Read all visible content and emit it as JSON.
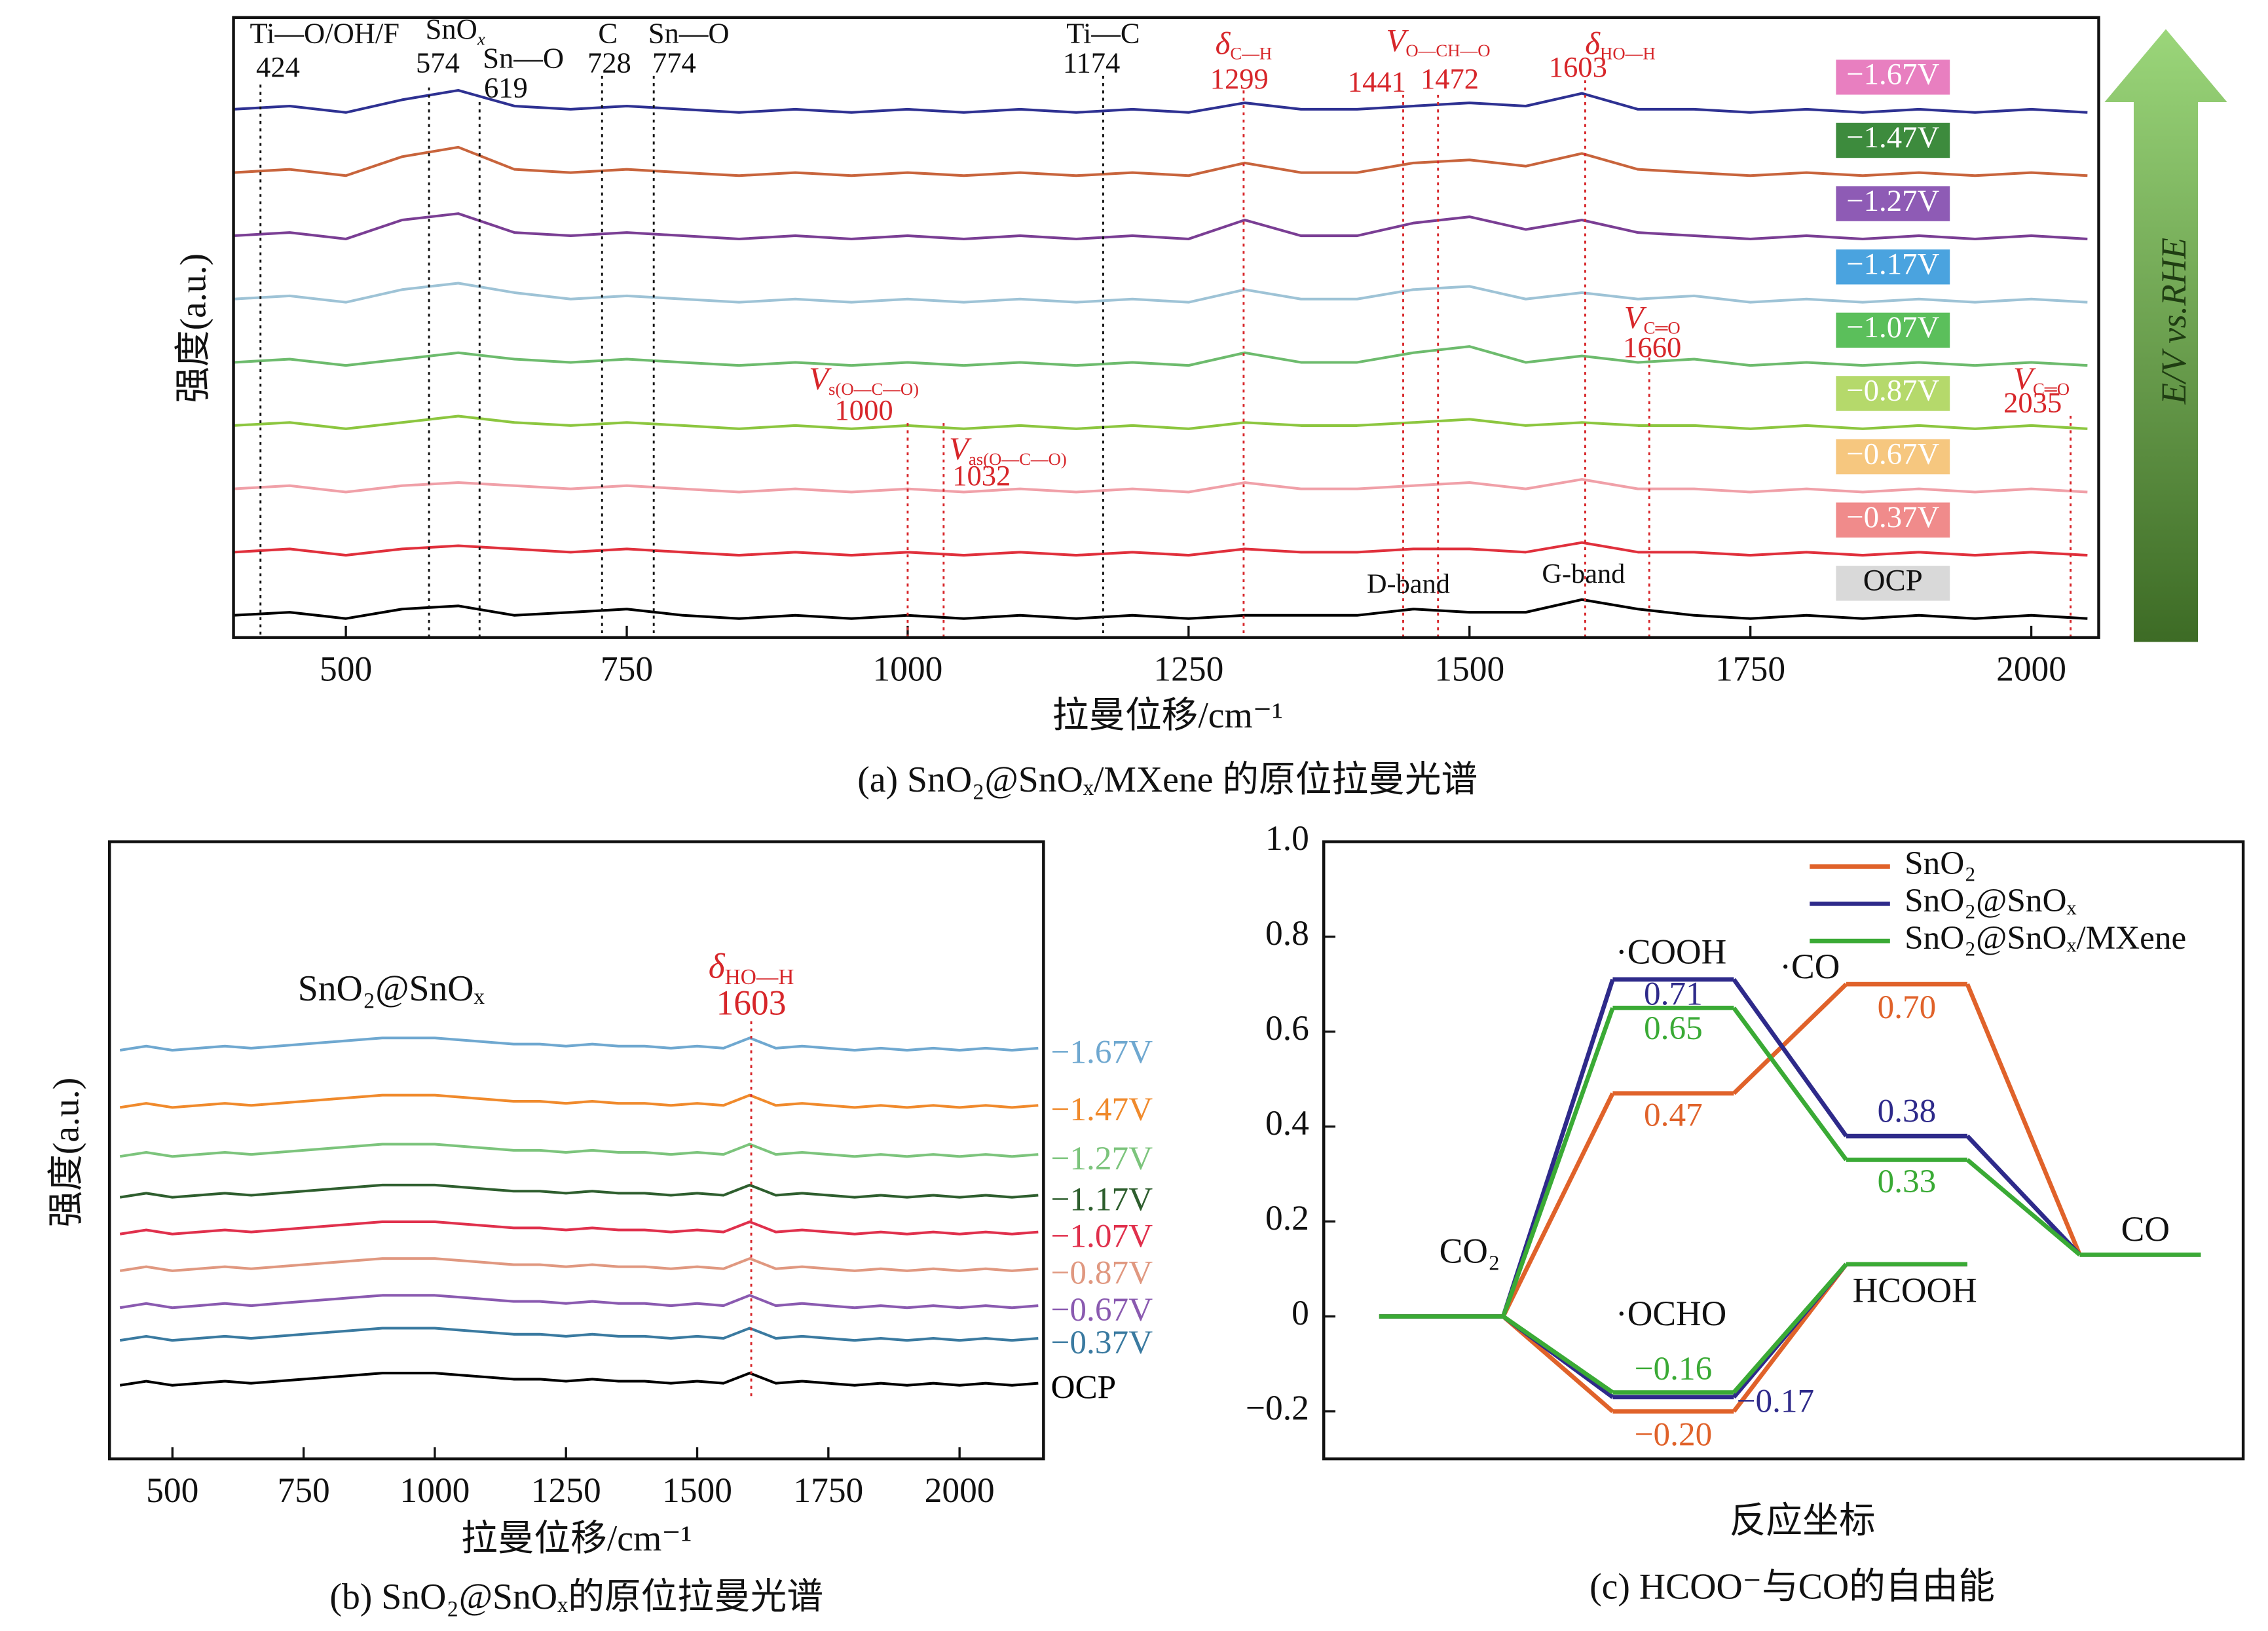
{
  "chart_data": [
    {
      "type": "spectra",
      "title": "(a) SnO₂@SnOₓ/MXene 的原位拉曼光谱",
      "x_label": "拉曼位移/cm⁻¹",
      "y_label": "强度(a.u.)",
      "side_label": "E/V vs.RHE",
      "xlim": [
        400,
        2060
      ],
      "xticks": [
        500,
        750,
        1000,
        1250,
        1500,
        1750,
        2000
      ],
      "ylim": [
        -0.3,
        9.5
      ],
      "x": [
        400,
        450,
        500,
        550,
        600,
        650,
        700,
        750,
        800,
        850,
        900,
        950,
        1000,
        1050,
        1100,
        1150,
        1200,
        1250,
        1300,
        1350,
        1400,
        1450,
        1500,
        1550,
        1600,
        1650,
        1700,
        1750,
        1800,
        1850,
        1900,
        1950,
        2000,
        2050
      ],
      "series": [
        {
          "name": "−1.67V",
          "color": "#2e3192",
          "label_color": "#e87fc0",
          "values": [
            8.05,
            8.1,
            8.0,
            8.2,
            8.35,
            8.1,
            8.05,
            8.1,
            8.05,
            8.0,
            8.05,
            8.0,
            8.05,
            8.0,
            8.05,
            8.0,
            8.05,
            8.0,
            8.15,
            8.05,
            8.05,
            8.1,
            8.15,
            8.1,
            8.3,
            8.05,
            8.05,
            8.0,
            8.05,
            8.0,
            8.05,
            8.0,
            8.05,
            8.0
          ]
        },
        {
          "name": "−1.47V",
          "color": "#c8643c",
          "label_color": "#3d8b3d",
          "values": [
            7.05,
            7.1,
            7.0,
            7.3,
            7.45,
            7.1,
            7.05,
            7.1,
            7.05,
            7.0,
            7.05,
            7.0,
            7.05,
            7.0,
            7.05,
            7.0,
            7.05,
            7.0,
            7.2,
            7.05,
            7.05,
            7.2,
            7.25,
            7.15,
            7.35,
            7.1,
            7.05,
            7.0,
            7.05,
            7.0,
            7.05,
            7.0,
            7.05,
            7.0
          ]
        },
        {
          "name": "−1.27V",
          "color": "#7a3e94",
          "label_color": "#8e5bb5",
          "values": [
            6.05,
            6.1,
            6.0,
            6.3,
            6.4,
            6.1,
            6.05,
            6.1,
            6.05,
            6.0,
            6.05,
            6.0,
            6.05,
            6.0,
            6.05,
            6.0,
            6.05,
            6.0,
            6.3,
            6.05,
            6.05,
            6.25,
            6.35,
            6.15,
            6.3,
            6.1,
            6.05,
            6.0,
            6.05,
            6.0,
            6.05,
            6.0,
            6.05,
            6.0
          ]
        },
        {
          "name": "−1.17V",
          "color": "#9ec3d6",
          "label_color": "#4aa3df",
          "values": [
            5.05,
            5.1,
            5.0,
            5.2,
            5.3,
            5.15,
            5.05,
            5.1,
            5.05,
            5.0,
            5.05,
            5.0,
            5.05,
            5.0,
            5.05,
            5.0,
            5.05,
            5.0,
            5.2,
            5.05,
            5.05,
            5.2,
            5.25,
            5.05,
            5.15,
            5.05,
            5.1,
            5.0,
            5.05,
            5.0,
            5.05,
            5.0,
            5.05,
            5.0
          ]
        },
        {
          "name": "−1.07V",
          "color": "#6dbb6d",
          "label_color": "#5bbf5b",
          "values": [
            4.05,
            4.1,
            4.0,
            4.1,
            4.2,
            4.1,
            4.05,
            4.1,
            4.05,
            4.0,
            4.05,
            4.0,
            4.05,
            4.0,
            4.05,
            4.0,
            4.05,
            4.0,
            4.2,
            4.05,
            4.05,
            4.2,
            4.3,
            4.05,
            4.15,
            4.05,
            4.1,
            4.0,
            4.05,
            4.0,
            4.05,
            4.0,
            4.05,
            4.0
          ]
        },
        {
          "name": "−0.87V",
          "color": "#8cc63f",
          "label_color": "#b5d96b",
          "values": [
            3.05,
            3.1,
            3.0,
            3.1,
            3.2,
            3.1,
            3.05,
            3.1,
            3.05,
            3.0,
            3.05,
            3.0,
            3.05,
            3.0,
            3.05,
            3.0,
            3.05,
            3.0,
            3.1,
            3.05,
            3.05,
            3.1,
            3.15,
            3.05,
            3.1,
            3.05,
            3.05,
            3.0,
            3.05,
            3.0,
            3.05,
            3.0,
            3.05,
            3.0
          ]
        },
        {
          "name": "−0.67V",
          "color": "#f0a0a8",
          "label_color": "#f6c77f",
          "values": [
            2.05,
            2.1,
            2.0,
            2.1,
            2.15,
            2.1,
            2.05,
            2.1,
            2.05,
            2.0,
            2.05,
            2.0,
            2.05,
            2.0,
            2.05,
            2.0,
            2.05,
            2.0,
            2.15,
            2.05,
            2.05,
            2.1,
            2.15,
            2.05,
            2.2,
            2.05,
            2.05,
            2.0,
            2.05,
            2.0,
            2.05,
            2.0,
            2.05,
            2.0
          ]
        },
        {
          "name": "−0.37V",
          "color": "#e0303c",
          "label_color": "#f08b8b",
          "values": [
            1.05,
            1.1,
            1.0,
            1.1,
            1.15,
            1.1,
            1.05,
            1.1,
            1.05,
            1.0,
            1.05,
            1.0,
            1.05,
            1.0,
            1.05,
            1.0,
            1.05,
            1.0,
            1.1,
            1.05,
            1.05,
            1.1,
            1.1,
            1.05,
            1.2,
            1.05,
            1.05,
            1.0,
            1.05,
            1.0,
            1.05,
            1.0,
            1.05,
            1.0
          ]
        },
        {
          "name": "OCP",
          "color": "#000000",
          "label_color": "#d9d9d9",
          "values": [
            0.05,
            0.1,
            0.0,
            0.15,
            0.2,
            0.05,
            0.1,
            0.15,
            0.05,
            0.0,
            0.05,
            0.0,
            0.05,
            0.0,
            0.05,
            0.0,
            0.05,
            0.0,
            0.05,
            0.05,
            0.05,
            0.15,
            0.1,
            0.1,
            0.3,
            0.15,
            0.05,
            0.0,
            0.05,
            0.0,
            0.05,
            0.0,
            0.05,
            0.0
          ]
        }
      ],
      "annotations": [
        {
          "x": 424,
          "name": "Ti—O/OH/F",
          "color": "#111111"
        },
        {
          "x": 574,
          "name": "SnO",
          "sub": "x",
          "color": "#111111"
        },
        {
          "x": 619,
          "name": "Sn—O",
          "color": "#111111"
        },
        {
          "x": 728,
          "name": "C",
          "color": "#111111"
        },
        {
          "x": 774,
          "name": "Sn—O",
          "color": "#111111"
        },
        {
          "x": 1000,
          "name": "V",
          "sub": "s(O—C—O)",
          "color": "#d7262a"
        },
        {
          "x": 1032,
          "name": "V",
          "sub": "as(O—C—O)",
          "color": "#d7262a"
        },
        {
          "x": 1174,
          "name": "Ti—C",
          "color": "#111111"
        },
        {
          "x": 1299,
          "name": "δ",
          "sub": "C—H",
          "color": "#d7262a"
        },
        {
          "x": 1441,
          "name": "V",
          "sub": "O—CH—O",
          "color": "#d7262a"
        },
        {
          "x": 1472,
          "color": "#d7262a"
        },
        {
          "x": 1603,
          "name": "δ",
          "sub": "HO—H",
          "color": "#d7262a"
        },
        {
          "x": 1660,
          "name": "V",
          "sub": "C═O",
          "color": "#d7262a"
        },
        {
          "x": 2035,
          "name": "V",
          "sub": "C═O",
          "color": "#d7262a"
        }
      ],
      "band_labels": [
        "D-band",
        "G-band"
      ]
    },
    {
      "type": "spectra",
      "title": "(b) SnO₂@SnOₓ的原位拉曼光谱",
      "x_label": "拉曼位移/cm⁻¹",
      "y_label": "强度(a.u.)",
      "inset_label": "SnO₂@SnOₓ",
      "xlim": [
        380,
        2160
      ],
      "xticks": [
        500,
        750,
        1000,
        1250,
        1500,
        1750,
        2000
      ],
      "ylim": [
        -1.8,
        13.3
      ],
      "x": [
        400,
        450,
        500,
        550,
        600,
        650,
        700,
        750,
        800,
        850,
        900,
        950,
        1000,
        1050,
        1100,
        1150,
        1200,
        1250,
        1300,
        1350,
        1400,
        1450,
        1500,
        1550,
        1600,
        1650,
        1700,
        1750,
        1800,
        1850,
        1900,
        1950,
        2000,
        2050,
        2100,
        2150
      ],
      "series": [
        {
          "name": "−1.67V",
          "color": "#6fa8d0",
          "values": [
            8.2,
            8.3,
            8.2,
            8.25,
            8.3,
            8.25,
            8.3,
            8.35,
            8.4,
            8.45,
            8.5,
            8.5,
            8.5,
            8.45,
            8.4,
            8.35,
            8.35,
            8.3,
            8.35,
            8.3,
            8.3,
            8.25,
            8.3,
            8.25,
            8.5,
            8.25,
            8.3,
            8.25,
            8.2,
            8.25,
            8.2,
            8.25,
            8.2,
            8.25,
            8.2,
            8.25
          ]
        },
        {
          "name": "−1.47V",
          "color": "#f08a2c",
          "values": [
            6.8,
            6.9,
            6.8,
            6.85,
            6.9,
            6.85,
            6.9,
            6.95,
            7.0,
            7.05,
            7.1,
            7.1,
            7.1,
            7.05,
            7.0,
            6.95,
            6.95,
            6.9,
            6.95,
            6.9,
            6.9,
            6.85,
            6.9,
            6.85,
            7.1,
            6.85,
            6.9,
            6.85,
            6.8,
            6.85,
            6.8,
            6.85,
            6.8,
            6.85,
            6.8,
            6.85
          ]
        },
        {
          "name": "−1.27V",
          "color": "#7cc47c",
          "values": [
            5.6,
            5.7,
            5.6,
            5.65,
            5.7,
            5.65,
            5.7,
            5.75,
            5.8,
            5.85,
            5.9,
            5.9,
            5.9,
            5.85,
            5.8,
            5.75,
            5.75,
            5.7,
            5.75,
            5.7,
            5.7,
            5.65,
            5.7,
            5.65,
            5.9,
            5.65,
            5.7,
            5.65,
            5.6,
            5.65,
            5.6,
            5.65,
            5.6,
            5.65,
            5.6,
            5.65
          ]
        },
        {
          "name": "−1.17V",
          "color": "#2e5e2e",
          "values": [
            4.6,
            4.7,
            4.6,
            4.65,
            4.7,
            4.65,
            4.7,
            4.75,
            4.8,
            4.85,
            4.9,
            4.9,
            4.9,
            4.85,
            4.8,
            4.75,
            4.75,
            4.7,
            4.75,
            4.7,
            4.7,
            4.65,
            4.7,
            4.65,
            4.9,
            4.65,
            4.7,
            4.65,
            4.6,
            4.65,
            4.6,
            4.65,
            4.6,
            4.65,
            4.6,
            4.65
          ]
        },
        {
          "name": "−1.07V",
          "color": "#e0304c",
          "values": [
            3.7,
            3.8,
            3.7,
            3.75,
            3.8,
            3.75,
            3.8,
            3.85,
            3.9,
            3.95,
            4.0,
            4.0,
            4.0,
            3.95,
            3.9,
            3.85,
            3.85,
            3.8,
            3.85,
            3.8,
            3.8,
            3.75,
            3.8,
            3.75,
            4.0,
            3.75,
            3.8,
            3.75,
            3.7,
            3.75,
            3.7,
            3.75,
            3.7,
            3.75,
            3.7,
            3.75
          ]
        },
        {
          "name": "−0.87V",
          "color": "#e09880",
          "values": [
            2.8,
            2.9,
            2.8,
            2.85,
            2.9,
            2.85,
            2.9,
            2.95,
            3.0,
            3.05,
            3.1,
            3.1,
            3.1,
            3.05,
            3.0,
            2.95,
            2.95,
            2.9,
            2.95,
            2.9,
            2.9,
            2.85,
            2.9,
            2.85,
            3.1,
            2.85,
            2.9,
            2.85,
            2.8,
            2.85,
            2.8,
            2.85,
            2.8,
            2.85,
            2.8,
            2.85
          ]
        },
        {
          "name": "−0.67V",
          "color": "#8a5ab0",
          "values": [
            1.9,
            2.0,
            1.9,
            1.95,
            2.0,
            1.95,
            2.0,
            2.05,
            2.1,
            2.15,
            2.2,
            2.2,
            2.2,
            2.15,
            2.1,
            2.05,
            2.05,
            2.0,
            2.05,
            2.0,
            2.0,
            1.95,
            2.0,
            1.95,
            2.2,
            1.95,
            2.0,
            1.95,
            1.9,
            1.95,
            1.9,
            1.95,
            1.9,
            1.95,
            1.9,
            1.95
          ]
        },
        {
          "name": "−0.37V",
          "color": "#3a7aa0",
          "values": [
            1.1,
            1.2,
            1.1,
            1.15,
            1.2,
            1.15,
            1.2,
            1.25,
            1.3,
            1.35,
            1.4,
            1.4,
            1.4,
            1.35,
            1.3,
            1.25,
            1.25,
            1.2,
            1.25,
            1.2,
            1.2,
            1.15,
            1.2,
            1.15,
            1.4,
            1.15,
            1.2,
            1.15,
            1.1,
            1.15,
            1.1,
            1.15,
            1.1,
            1.15,
            1.1,
            1.15
          ]
        },
        {
          "name": "OCP",
          "color": "#000000",
          "values": [
            0,
            0.1,
            0,
            0.05,
            0.1,
            0.05,
            0.1,
            0.15,
            0.2,
            0.25,
            0.3,
            0.3,
            0.3,
            0.25,
            0.2,
            0.15,
            0.15,
            0.1,
            0.15,
            0.1,
            0.1,
            0.05,
            0.1,
            0.05,
            0.3,
            0.05,
            0.1,
            0.05,
            0,
            0.05,
            0,
            0.05,
            0,
            0.05,
            0,
            0.05
          ]
        }
      ],
      "annotations": [
        {
          "x": 1603,
          "name": "δ",
          "sub": "HO—H",
          "color": "#d7262a"
        }
      ]
    },
    {
      "type": "energy",
      "title": "(c) HCOO⁻与CO的自由能",
      "x_label": "反应坐标",
      "ylim": [
        -0.3,
        1.0
      ],
      "yticks": [
        {
          "value": -0.2,
          "label": "−0.2"
        },
        0,
        0.2,
        0.4,
        0.6,
        0.8,
        {
          "value": 1.0,
          "label": "1.0"
        }
      ],
      "categories": [
        "CO₂",
        "·COOH",
        "·CO",
        "CO",
        "·OCHO",
        "HCOOH"
      ],
      "series": [
        {
          "name": "SnO₂",
          "color": "#e0622a",
          "values": [
            0,
            0.47,
            0.7,
            0.13,
            -0.2,
            0.11
          ],
          "value_labels": [
            null,
            "0.47",
            "0.70",
            null,
            "−0.20",
            null
          ]
        },
        {
          "name": "SnO₂@SnOₓ",
          "color": "#2e2a8a",
          "values": [
            0,
            0.71,
            0.38,
            0.13,
            -0.17,
            0.11
          ],
          "value_labels": [
            null,
            "0.71",
            "0.38",
            null,
            "−0.17",
            null
          ]
        },
        {
          "name": "SnO₂@SnOₓ/MXene",
          "color": "#3aaa35",
          "values": [
            0,
            0.65,
            0.33,
            0.13,
            -0.16,
            0.11
          ],
          "value_labels": [
            null,
            "0.65",
            "0.33",
            null,
            "−0.16",
            null
          ]
        }
      ],
      "legend": "upper right"
    }
  ]
}
